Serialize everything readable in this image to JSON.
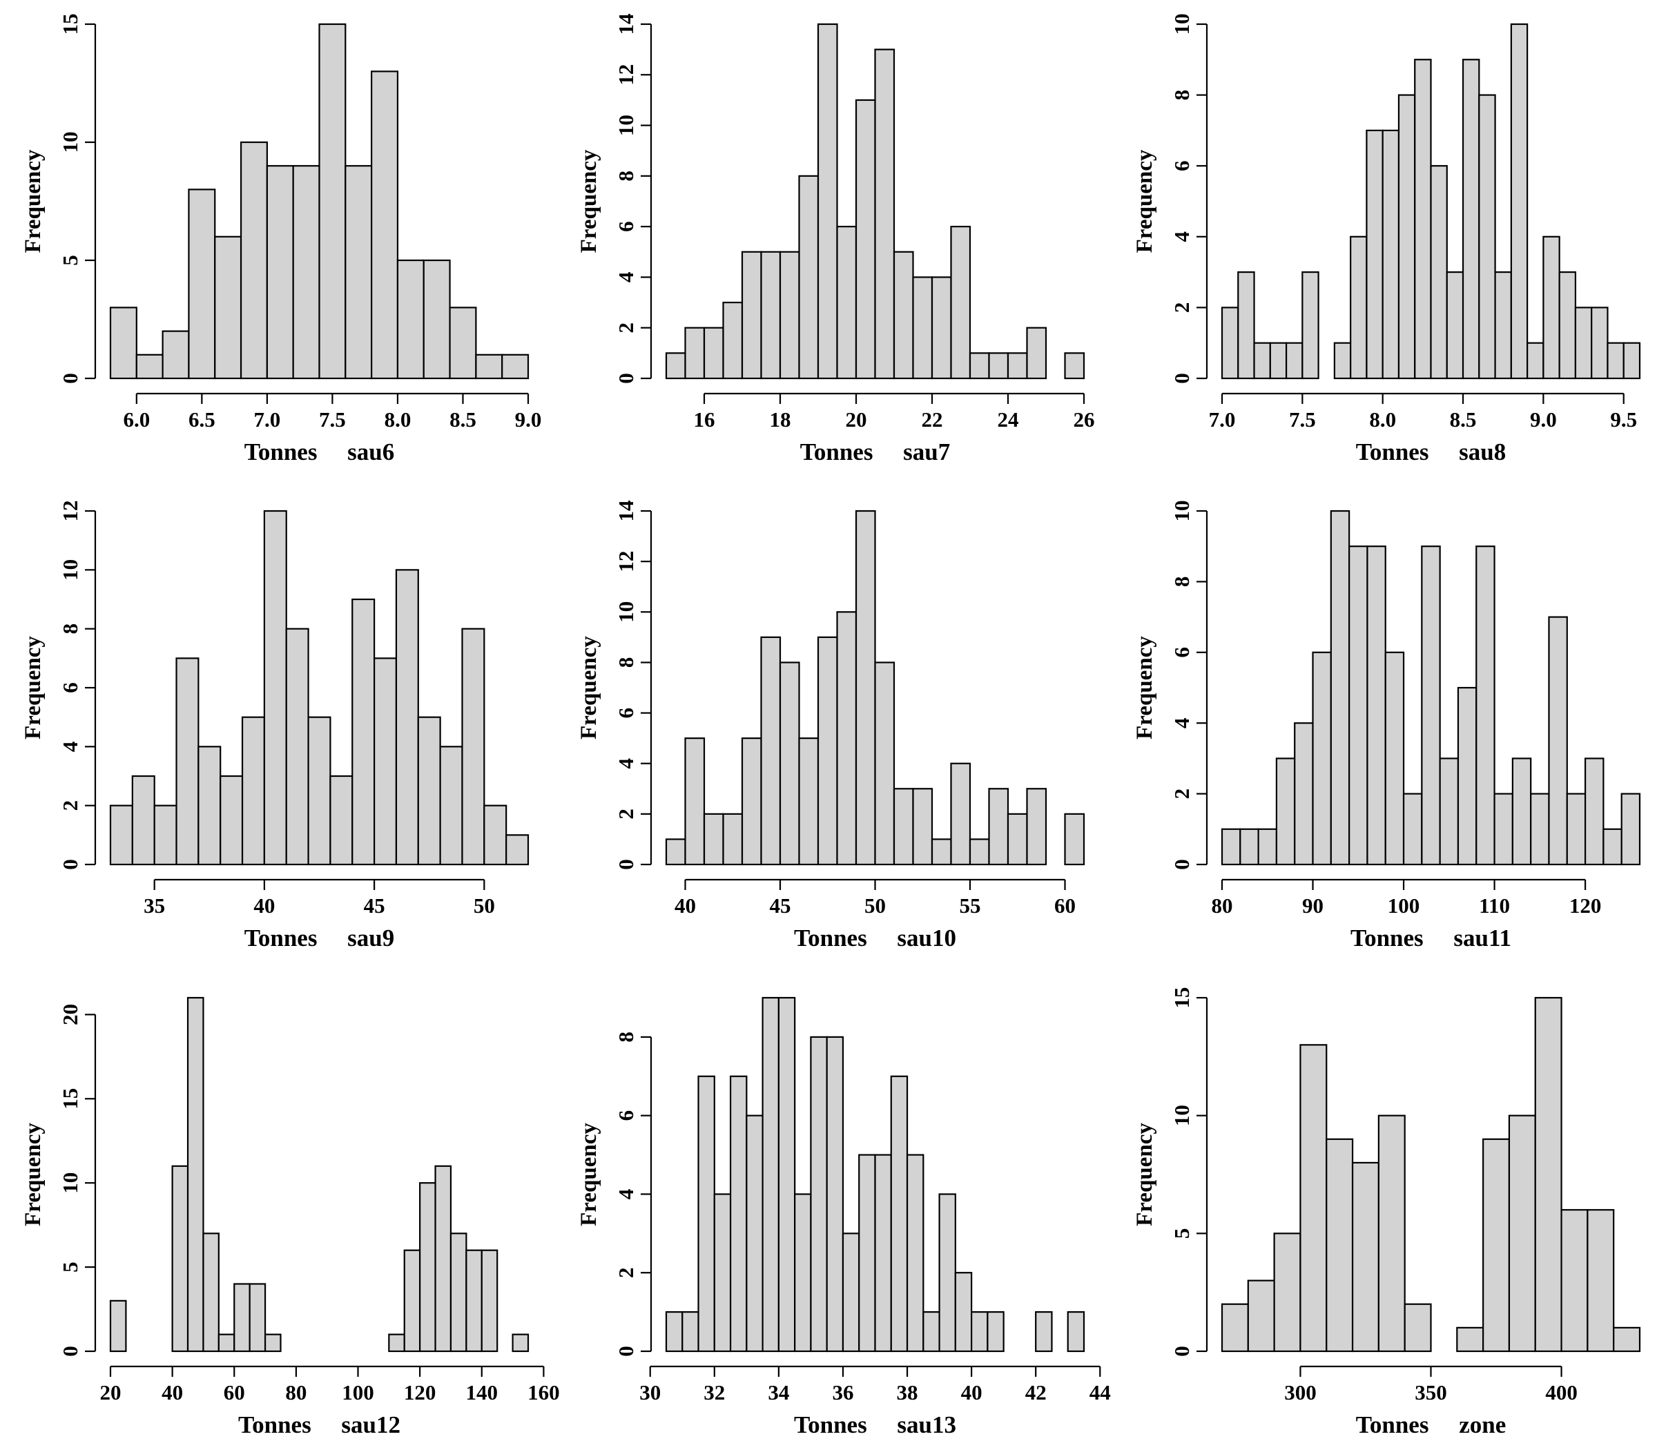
{
  "chart_data": [
    {
      "type": "bar",
      "subtype": "histogram",
      "xlabel": "Tonnes     sau6",
      "ylabel": "Frequency",
      "bin_start": 5.8,
      "bin_width": 0.2,
      "values": [
        3,
        1,
        2,
        8,
        6,
        10,
        9,
        9,
        15,
        9,
        13,
        5,
        5,
        3,
        1,
        1
      ],
      "xlim": [
        5.8,
        9.0
      ],
      "ylim": [
        0,
        15
      ],
      "xticks": [
        6.0,
        6.5,
        7.0,
        7.5,
        8.0,
        8.5,
        9.0
      ],
      "xtick_labels": [
        "6.0",
        "6.5",
        "7.0",
        "7.5",
        "8.0",
        "8.5",
        "9.0"
      ],
      "yticks": [
        0,
        5,
        10,
        15
      ],
      "ytick_labels": [
        "0",
        "5",
        "10",
        "15"
      ]
    },
    {
      "type": "bar",
      "subtype": "histogram",
      "xlabel": "Tonnes     sau7",
      "ylabel": "Frequency",
      "bin_start": 15,
      "bin_width": 0.5,
      "values": [
        1,
        2,
        2,
        3,
        5,
        5,
        5,
        8,
        14,
        6,
        11,
        13,
        5,
        4,
        4,
        6,
        1,
        1,
        1,
        2,
        0,
        1
      ],
      "xlim": [
        15,
        26
      ],
      "ylim": [
        0,
        14
      ],
      "xticks": [
        16,
        18,
        20,
        22,
        24,
        26
      ],
      "xtick_labels": [
        "16",
        "18",
        "20",
        "22",
        "24",
        "26"
      ],
      "yticks": [
        0,
        2,
        4,
        6,
        8,
        10,
        12,
        14
      ],
      "ytick_labels": [
        "0",
        "2",
        "4",
        "6",
        "8",
        "10",
        "12",
        "14"
      ]
    },
    {
      "type": "bar",
      "subtype": "histogram",
      "xlabel": "Tonnes     sau8",
      "ylabel": "Frequency",
      "bin_start": 7.0,
      "bin_width": 0.1,
      "values": [
        2,
        3,
        1,
        1,
        1,
        3,
        0,
        1,
        4,
        7,
        7,
        8,
        9,
        6,
        3,
        9,
        8,
        3,
        10,
        1,
        4,
        3,
        2,
        2,
        1,
        1
      ],
      "xlim": [
        7.0,
        9.6
      ],
      "ylim": [
        0,
        10
      ],
      "xticks": [
        7.0,
        7.5,
        8.0,
        8.5,
        9.0,
        9.5
      ],
      "xtick_labels": [
        "7.0",
        "7.5",
        "8.0",
        "8.5",
        "9.0",
        "9.5"
      ],
      "yticks": [
        0,
        2,
        4,
        6,
        8,
        10
      ],
      "ytick_labels": [
        "0",
        "2",
        "4",
        "6",
        "8",
        "10"
      ]
    },
    {
      "type": "bar",
      "subtype": "histogram",
      "xlabel": "Tonnes     sau9",
      "ylabel": "Frequency",
      "bin_start": 33,
      "bin_width": 1,
      "values": [
        2,
        3,
        2,
        7,
        4,
        3,
        5,
        12,
        8,
        5,
        3,
        9,
        7,
        10,
        5,
        4,
        8,
        2,
        1
      ],
      "xlim": [
        33,
        52
      ],
      "ylim": [
        0,
        12
      ],
      "xticks": [
        35,
        40,
        45,
        50
      ],
      "xtick_labels": [
        "35",
        "40",
        "45",
        "50"
      ],
      "yticks": [
        0,
        2,
        4,
        6,
        8,
        10,
        12
      ],
      "ytick_labels": [
        "0",
        "2",
        "4",
        "6",
        "8",
        "10",
        "12"
      ]
    },
    {
      "type": "bar",
      "subtype": "histogram",
      "xlabel": "Tonnes     sau10",
      "ylabel": "Frequency",
      "bin_start": 39,
      "bin_width": 1,
      "values": [
        1,
        5,
        2,
        2,
        5,
        9,
        8,
        5,
        9,
        10,
        14,
        8,
        3,
        3,
        1,
        4,
        1,
        3,
        2,
        3,
        0,
        2
      ],
      "xlim": [
        39,
        61
      ],
      "ylim": [
        0,
        14
      ],
      "xticks": [
        40,
        45,
        50,
        55,
        60
      ],
      "xtick_labels": [
        "40",
        "45",
        "50",
        "55",
        "60"
      ],
      "yticks": [
        0,
        2,
        4,
        6,
        8,
        10,
        12,
        14
      ],
      "ytick_labels": [
        "0",
        "2",
        "4",
        "6",
        "8",
        "10",
        "12",
        "14"
      ]
    },
    {
      "type": "bar",
      "subtype": "histogram",
      "xlabel": "Tonnes     sau11",
      "ylabel": "Frequency",
      "bin_start": 80,
      "bin_width": 2,
      "values": [
        1,
        1,
        1,
        3,
        4,
        6,
        10,
        9,
        9,
        6,
        2,
        9,
        3,
        5,
        9,
        2,
        3,
        2,
        7,
        2,
        3,
        1,
        2
      ],
      "xlim": [
        80,
        126
      ],
      "ylim": [
        0,
        10
      ],
      "xticks": [
        80,
        90,
        100,
        110,
        120
      ],
      "xtick_labels": [
        "80",
        "90",
        "100",
        "110",
        "120"
      ],
      "yticks": [
        0,
        2,
        4,
        6,
        8,
        10
      ],
      "ytick_labels": [
        "0",
        "2",
        "4",
        "6",
        "8",
        "10"
      ]
    },
    {
      "type": "bar",
      "subtype": "histogram",
      "xlabel": "Tonnes     sau12",
      "ylabel": "Frequency",
      "bin_start": 20,
      "bin_width": 5,
      "values": [
        3,
        0,
        0,
        0,
        11,
        21,
        7,
        1,
        4,
        4,
        1,
        0,
        0,
        0,
        0,
        0,
        0,
        0,
        1,
        6,
        10,
        11,
        7,
        6,
        6,
        0,
        1
      ],
      "xlim": [
        20,
        155
      ],
      "ylim": [
        0,
        21
      ],
      "xticks": [
        20,
        40,
        60,
        80,
        100,
        120,
        140,
        160
      ],
      "xtick_labels": [
        "20",
        "40",
        "60",
        "80",
        "100",
        "120",
        "140",
        "160"
      ],
      "yticks": [
        0,
        5,
        10,
        15,
        20
      ],
      "ytick_labels": [
        "0",
        "5",
        "10",
        "15",
        "20"
      ]
    },
    {
      "type": "bar",
      "subtype": "histogram",
      "xlabel": "Tonnes     sau13",
      "ylabel": "Frequency",
      "bin_start": 30.5,
      "bin_width": 0.5,
      "values": [
        1,
        1,
        7,
        4,
        7,
        6,
        9,
        9,
        4,
        8,
        8,
        3,
        5,
        5,
        7,
        5,
        1,
        4,
        2,
        1,
        1,
        0,
        0,
        1,
        0,
        1
      ],
      "xlim": [
        30.5,
        43.5
      ],
      "ylim": [
        0,
        9
      ],
      "xticks": [
        30,
        32,
        34,
        36,
        38,
        40,
        42,
        44
      ],
      "xtick_labels": [
        "30",
        "32",
        "34",
        "36",
        "38",
        "40",
        "42",
        "44"
      ],
      "yticks": [
        0,
        2,
        4,
        6,
        8
      ],
      "ytick_labels": [
        "0",
        "2",
        "4",
        "6",
        "8"
      ]
    },
    {
      "type": "bar",
      "subtype": "histogram",
      "xlabel": "Tonnes     zone",
      "ylabel": "Frequency",
      "bin_start": 270,
      "bin_width": 10,
      "values": [
        2,
        3,
        5,
        13,
        9,
        8,
        10,
        2,
        0,
        1,
        9,
        10,
        15,
        6,
        6,
        1
      ],
      "xlim": [
        270,
        430
      ],
      "ylim": [
        0,
        15
      ],
      "xticks": [
        300,
        350,
        400
      ],
      "xtick_labels": [
        "300",
        "350",
        "400"
      ],
      "yticks": [
        0,
        5,
        10,
        15
      ],
      "ytick_labels": [
        "0",
        "5",
        "10",
        "15"
      ]
    }
  ]
}
